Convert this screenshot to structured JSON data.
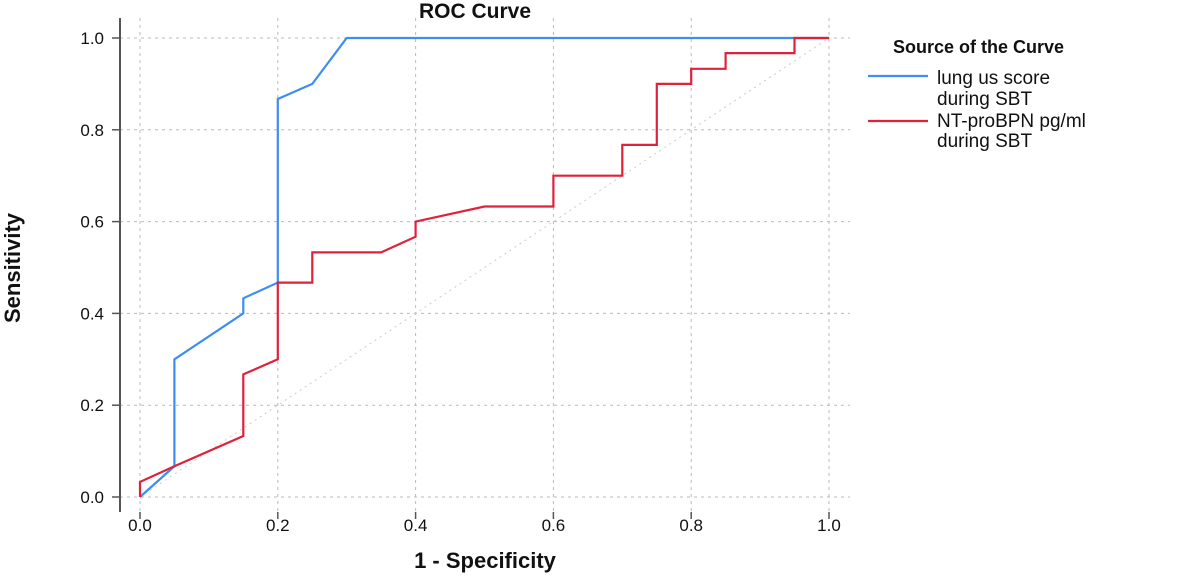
{
  "chart_data": {
    "type": "line",
    "title": "ROC Curve",
    "xlabel": "1 - Specificity",
    "ylabel": "Sensitivity",
    "xlim": [
      0.0,
      1.0
    ],
    "ylim": [
      0.0,
      1.0
    ],
    "x_ticks": [
      "0.0",
      "0.2",
      "0.4",
      "0.6",
      "0.8",
      "1.0"
    ],
    "y_ticks": [
      "0.0",
      "0.2",
      "0.4",
      "0.6",
      "0.8",
      "1.0"
    ],
    "grid": true,
    "legend_title": "Source of the Curve",
    "legend_position": "right",
    "series": [
      {
        "name": "lung us score during SBT",
        "name_lines": [
          "lung us score",
          "during SBT"
        ],
        "color": "#3d8ef0",
        "x": [
          0.0,
          0.05,
          0.05,
          0.15,
          0.15,
          0.2,
          0.2,
          0.25,
          0.3,
          1.0
        ],
        "y": [
          0.0,
          0.067,
          0.3,
          0.4,
          0.433,
          0.467,
          0.867,
          0.9,
          1.0,
          1.0
        ]
      },
      {
        "name": "NT-proBPN pg/ml during SBT",
        "name_lines": [
          "NT-proBPN pg/ml",
          "during SBT"
        ],
        "color": "#e0213a",
        "x": [
          0.0,
          0.0,
          0.05,
          0.15,
          0.15,
          0.2,
          0.2,
          0.25,
          0.25,
          0.35,
          0.4,
          0.4,
          0.5,
          0.6,
          0.6,
          0.7,
          0.7,
          0.75,
          0.75,
          0.8,
          0.8,
          0.85,
          0.85,
          0.95,
          0.95,
          1.0
        ],
        "y": [
          0.0,
          0.033,
          0.067,
          0.133,
          0.267,
          0.3,
          0.467,
          0.467,
          0.533,
          0.533,
          0.567,
          0.6,
          0.633,
          0.633,
          0.7,
          0.7,
          0.767,
          0.767,
          0.9,
          0.9,
          0.933,
          0.933,
          0.967,
          0.967,
          1.0,
          1.0
        ]
      }
    ]
  }
}
